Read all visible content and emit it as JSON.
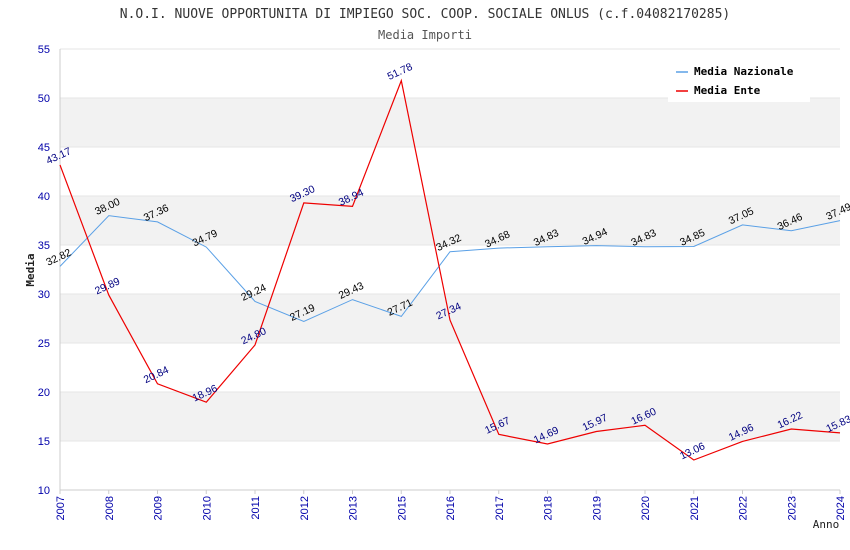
{
  "chart_data": {
    "type": "line",
    "title": "N.O.I. NUOVE OPPORTUNITA DI IMPIEGO SOC. COOP. SOCIALE ONLUS (c.f.04082170285)",
    "subtitle": "Media Importi",
    "xlabel": "Anno",
    "ylabel": "Media",
    "ylim": [
      10,
      55
    ],
    "yticks": [
      10,
      15,
      20,
      25,
      30,
      35,
      40,
      45,
      50,
      55
    ],
    "categories": [
      "2007",
      "2008",
      "2009",
      "2010",
      "2011",
      "2012",
      "2013",
      "2015",
      "2016",
      "2017",
      "2018",
      "2019",
      "2020",
      "2021",
      "2022",
      "2023",
      "2024"
    ],
    "grid": "horizontal bands",
    "legend_position": "top-right",
    "series": [
      {
        "name": "Media Nazionale",
        "color": "#5aa0e6",
        "values": [
          32.82,
          38.0,
          37.36,
          34.79,
          29.24,
          27.19,
          29.43,
          27.71,
          34.32,
          34.68,
          34.83,
          34.94,
          34.83,
          34.85,
          37.05,
          36.46,
          37.49
        ],
        "labels": [
          "32.82",
          "38.00",
          "37.36",
          "34.79",
          "29.24",
          "27.19",
          "29.43",
          "27.71",
          "34.32",
          "34.68",
          "34.83",
          "34.94",
          "34.83",
          "34.85",
          "37.05",
          "36.46",
          "37.49"
        ]
      },
      {
        "name": "Media Ente",
        "color": "#ee0000",
        "values": [
          43.17,
          29.89,
          20.84,
          18.96,
          24.8,
          39.3,
          38.94,
          51.78,
          27.34,
          15.67,
          14.69,
          15.97,
          16.6,
          13.06,
          14.96,
          16.22,
          15.83
        ],
        "labels": [
          "43.17",
          "29.89",
          "20.84",
          "18.96",
          "24.80",
          "39.30",
          "38.94",
          "51.78",
          "27.34",
          "15.67",
          "14.69",
          "15.97",
          "16.60",
          "13.06",
          "14.96",
          "16.22",
          "15.83"
        ]
      }
    ]
  }
}
